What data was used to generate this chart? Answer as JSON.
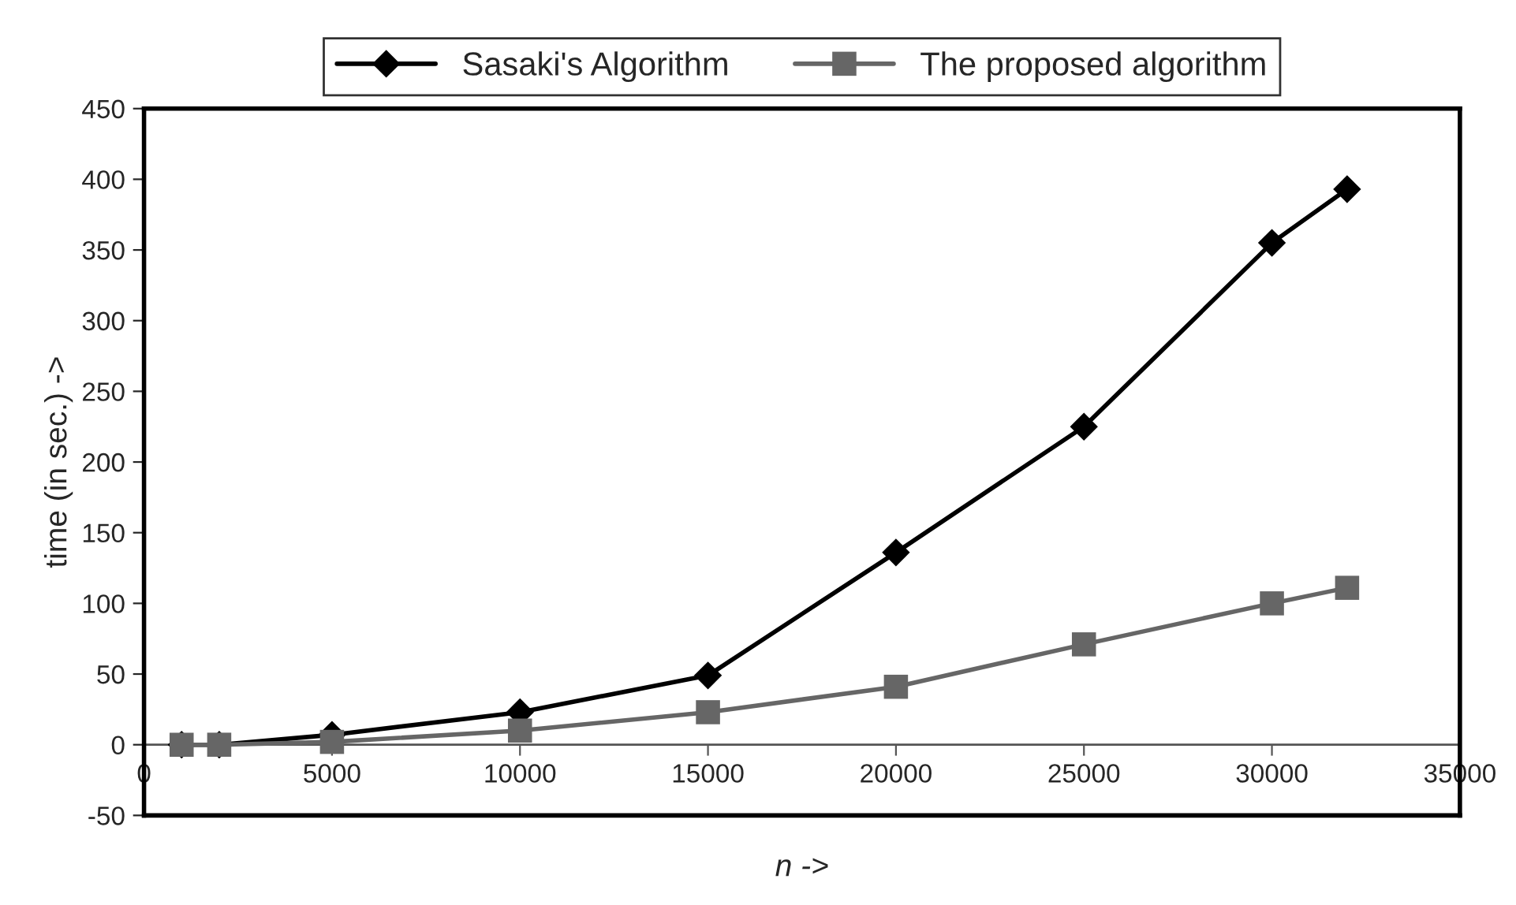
{
  "chart_data": {
    "type": "line",
    "xlabel": "n ->",
    "ylabel": "time (in sec.) ->",
    "x": [
      1000,
      2000,
      5000,
      10000,
      15000,
      20000,
      25000,
      30000,
      32000
    ],
    "series": [
      {
        "name": "Sasaki's Algorithm",
        "color": "#000000",
        "marker": "diamond",
        "values": [
          0,
          0,
          7,
          23,
          49,
          136,
          225,
          355,
          393
        ]
      },
      {
        "name": "The proposed algorithm",
        "color": "#666666",
        "marker": "square",
        "values": [
          0,
          0,
          2,
          10,
          23,
          41,
          71,
          100,
          111
        ]
      }
    ],
    "xlim": [
      0,
      35000
    ],
    "xticks": [
      0,
      5000,
      10000,
      15000,
      20000,
      25000,
      30000,
      35000
    ],
    "ylim": [
      -50,
      450
    ],
    "yticks": [
      -50,
      0,
      50,
      100,
      150,
      200,
      250,
      300,
      350,
      400,
      450
    ],
    "grid": false,
    "legend": "top",
    "line_style": "solid"
  }
}
